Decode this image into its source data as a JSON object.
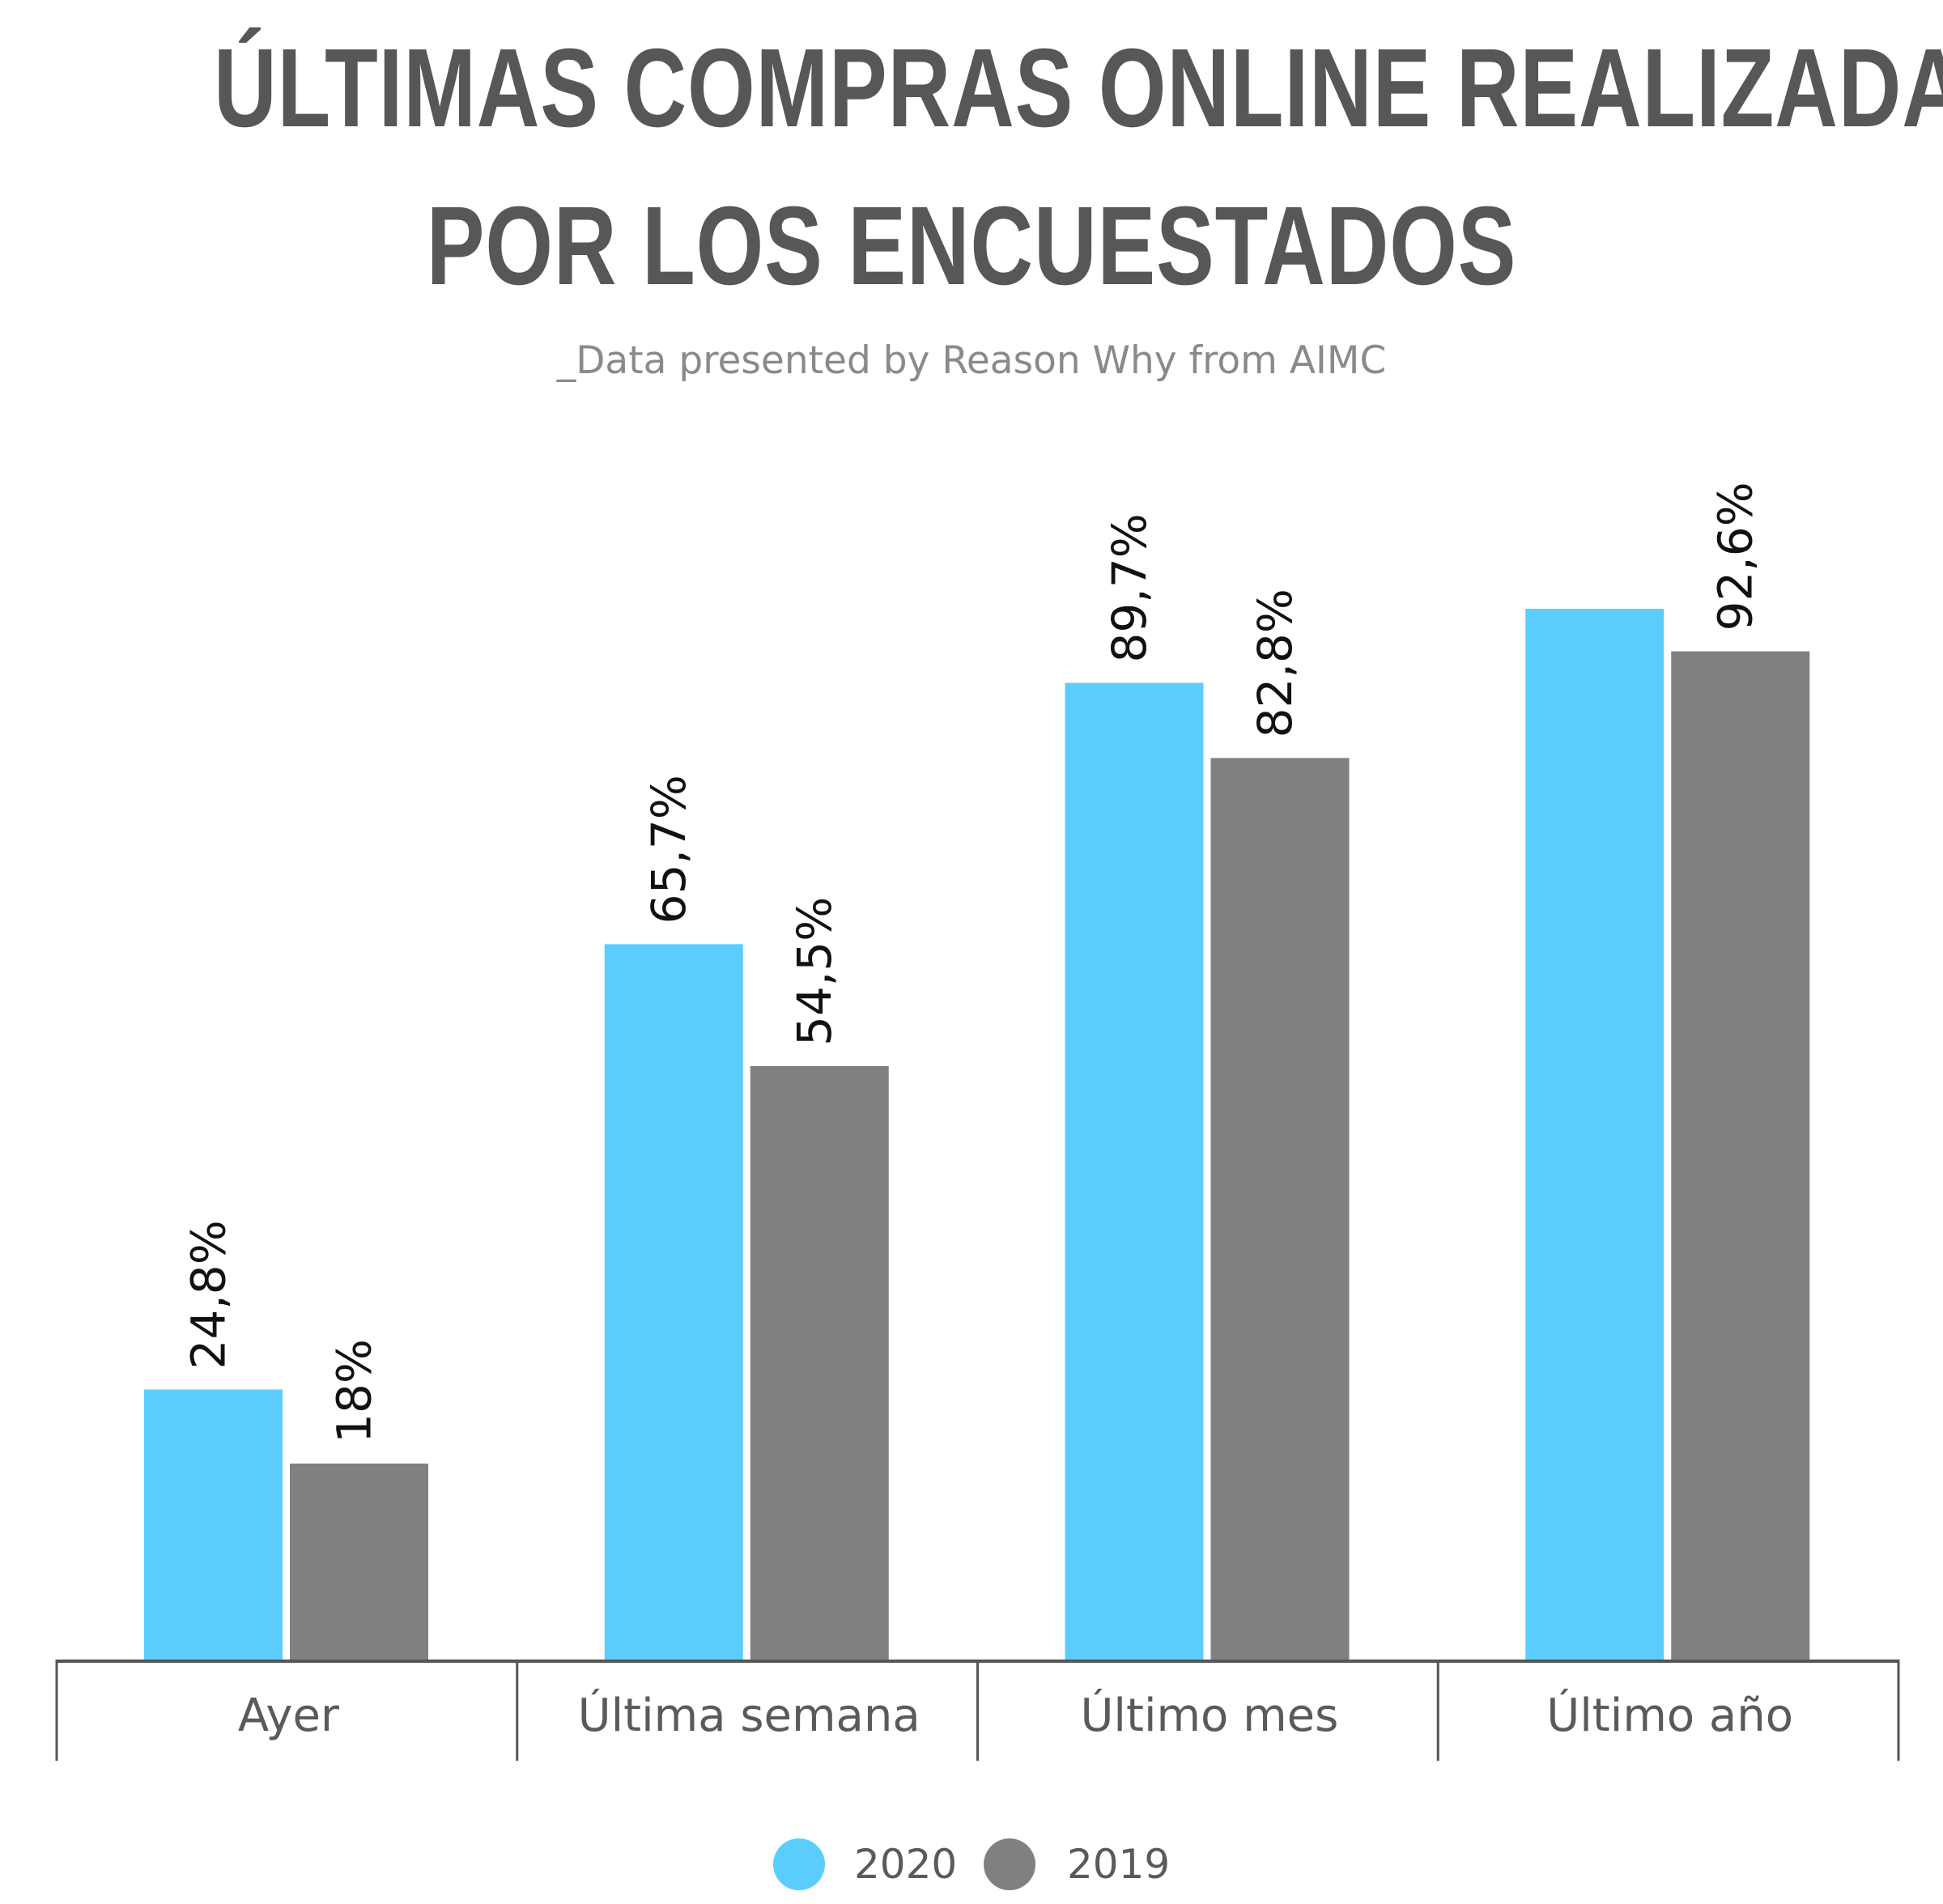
{
  "header": {
    "title_line1": "ÚLTIMAS COMPRAS ONLINE REALIZADAS",
    "title_line2": "POR LOS ENCUESTADOS",
    "subtitle": "_Data presented by Reason Why from AIMC"
  },
  "colors": {
    "series_2020": "#5bcdfd",
    "series_2019": "#808080",
    "title": "#575757",
    "axis": "#555555"
  },
  "chart_data": {
    "type": "bar",
    "title": "ÚLTIMAS COMPRAS ONLINE REALIZADAS POR LOS ENCUESTADOS",
    "subtitle": "_Data presented by Reason Why from AIMC",
    "categories": [
      "Ayer",
      "Última semana",
      "Último mes",
      "Último año"
    ],
    "series": [
      {
        "name": "2020",
        "values": [
          24.8,
          65.7,
          89.7,
          96.5
        ],
        "labels": [
          "24,8%",
          "65,7%",
          "89,7%",
          ""
        ]
      },
      {
        "name": "2019",
        "values": [
          18,
          54.5,
          82.8,
          92.6
        ],
        "labels": [
          "18%",
          "54,5%",
          "82,8%",
          "92,6%"
        ]
      }
    ],
    "ylim": [
      0,
      100
    ],
    "grid": false,
    "legend_position": "bottom-center"
  }
}
